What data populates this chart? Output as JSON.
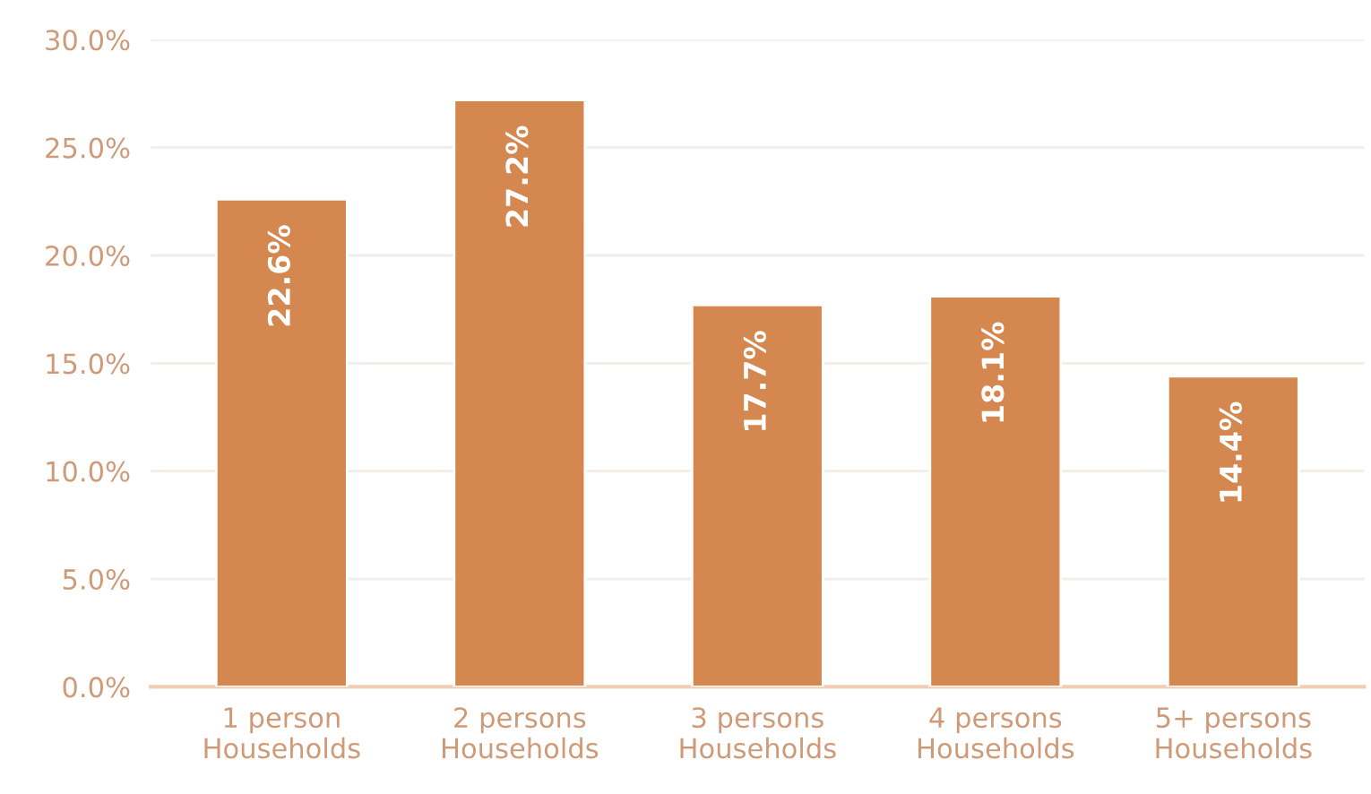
{
  "chart_data": {
    "type": "bar",
    "categories": [
      "1 person\nHouseholds",
      "2 persons\nHouseholds",
      "3 persons\nHouseholds",
      "4 persons\nHouseholds",
      "5+ persons\nHouseholds"
    ],
    "values": [
      22.6,
      27.2,
      17.7,
      18.1,
      14.4
    ],
    "color": "#d4874f",
    "value_labels": [
      "22.6%",
      "27.2%",
      "17.7%",
      "18.1%",
      "14.4%"
    ],
    "ylim": [
      0,
      30
    ],
    "yticks": [
      {
        "value": 0,
        "label": "0.0%"
      },
      {
        "value": 5,
        "label": "5.0%"
      },
      {
        "value": 10,
        "label": "10.0%"
      },
      {
        "value": 15,
        "label": "15.0%"
      },
      {
        "value": 20,
        "label": "20.0%"
      },
      {
        "value": 25,
        "label": "25.0%"
      },
      {
        "value": 30,
        "label": "30.0%"
      }
    ],
    "grid": "y"
  }
}
